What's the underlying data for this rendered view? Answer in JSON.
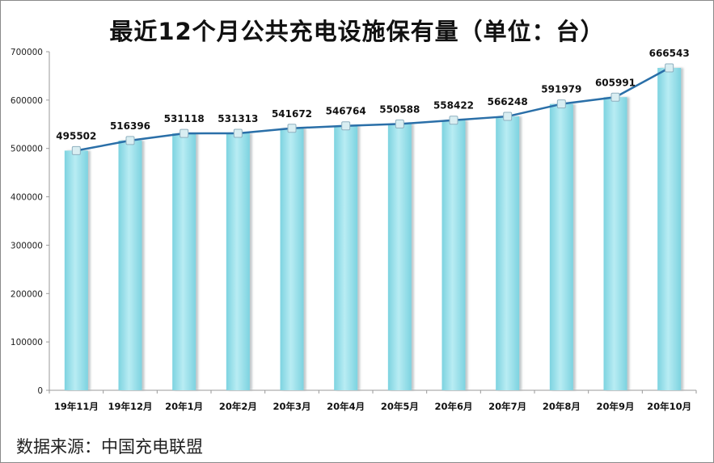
{
  "chart_data": {
    "type": "bar",
    "title": "最近12个月公共充电设施保有量（单位：台）",
    "categories": [
      "19年11月",
      "19年12月",
      "20年1月",
      "20年2月",
      "20年3月",
      "20年4月",
      "20年5月",
      "20年6月",
      "20年7月",
      "20年8月",
      "20年9月",
      "20年10月"
    ],
    "values": [
      495502,
      516396,
      531118,
      531313,
      541672,
      546764,
      550588,
      558422,
      566248,
      591979,
      605991,
      666543
    ],
    "overlay_line": true,
    "ylim": [
      0,
      700000
    ],
    "yticks": [
      0,
      100000,
      200000,
      300000,
      400000,
      500000,
      600000,
      700000
    ],
    "ytick_labels": [
      "0",
      "100000",
      "200000",
      "300000",
      "400000",
      "500000",
      "600000",
      "700000"
    ],
    "xlabel": "",
    "ylabel": "",
    "grid": false,
    "legend": "none",
    "colors": {
      "bar": "#7dd3e0",
      "bar_highlight": "#b8ecf3",
      "line": "#2a6fa8",
      "marker": "#d9eef2"
    }
  },
  "source": "数据来源：中国充电联盟"
}
